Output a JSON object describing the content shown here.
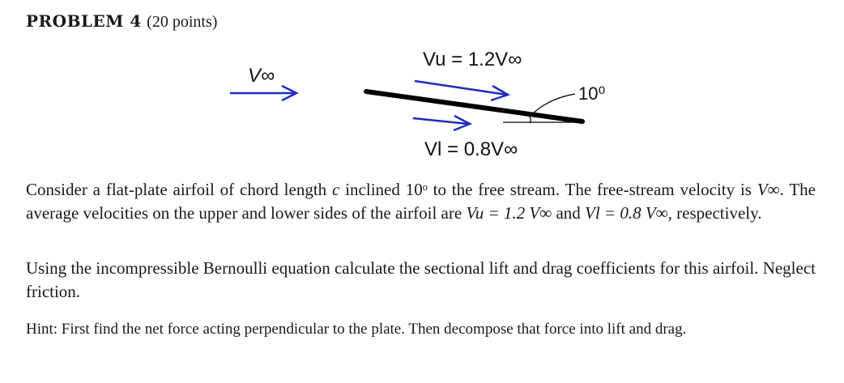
{
  "problem": {
    "heading": "PROBLEM 4",
    "points": "(20 points)"
  },
  "figure": {
    "freestream_label": "V∞",
    "upper_label": "Vu = 1.2V∞",
    "lower_label": "Vl = 0.8V∞",
    "angle_label": "10⁰",
    "arrow_color": "#1f2bbf",
    "plate_color": "#000000"
  },
  "paragraph1": {
    "part1": "Consider a flat-plate airfoil of chord length ",
    "chord_symbol": "c",
    "part2": " inclined 10ᵒ to the free stream. The free-stream velocity is ",
    "v_inf": "V∞",
    "part3": ". The average velocities on the upper and lower sides of the airfoil are ",
    "vu_expr": "Vu = 1.2 V∞",
    "part4": " and ",
    "vl_expr": "Vl = 0.8 V∞",
    "part5": ", respectively."
  },
  "paragraph2": "Using the incompressible Bernoulli equation calculate the sectional lift and drag coefficients for this airfoil. Neglect friction.",
  "paragraph3": "Hint: First find the net force acting perpendicular to the plate. Then decompose that force into lift and drag."
}
